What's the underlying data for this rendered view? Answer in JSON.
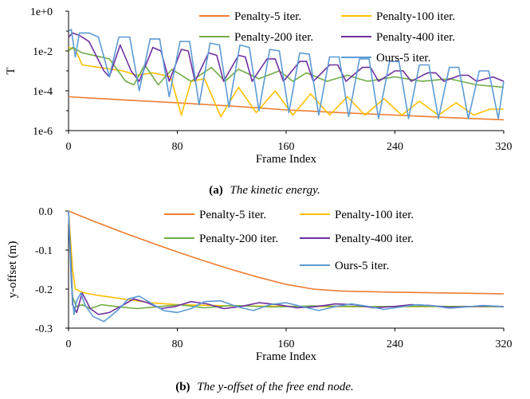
{
  "captions": {
    "a": {
      "label": "(a)",
      "text": "The kinetic energy."
    },
    "b": {
      "label": "(b)",
      "text": "The y-offset of the free end node."
    }
  },
  "colors": {
    "penalty5": "#ED7D31",
    "penalty100": "#FFC000",
    "penalty200": "#70AD47",
    "penalty400": "#7030A0",
    "ours5": "#5B9BD5"
  },
  "chart_data": [
    {
      "type": "line",
      "id": "a",
      "xlabel": "Frame Index",
      "ylabel": "T",
      "yscale": "log",
      "xlim": [
        0,
        320
      ],
      "ylim": [
        1e-06,
        1
      ],
      "xticks": [
        0,
        80,
        160,
        240,
        320
      ],
      "yticks": [
        1,
        0.01,
        0.0001,
        1e-06
      ],
      "ytick_labels": [
        "1e+0",
        "1e-2",
        "1e-4",
        "1e-6"
      ],
      "legend": "top, 2 columns",
      "series": [
        {
          "name": "Penalty-5 iter.",
          "color_key": "penalty5",
          "x": [
            0,
            40,
            80,
            120,
            160,
            200,
            240,
            280,
            320
          ],
          "y": [
            5e-05,
            3.5e-05,
            2.5e-05,
            1.7e-05,
            1.1e-05,
            8e-06,
            6e-06,
            4.5e-06,
            3.5e-06
          ]
        },
        {
          "name": "Penalty-100 iter.",
          "color_key": "penalty100",
          "x": [
            0,
            5,
            10,
            40,
            50,
            62,
            75,
            83,
            90,
            100,
            112,
            125,
            138,
            152,
            165,
            178,
            192,
            205,
            218,
            232,
            245,
            258,
            272,
            285,
            298,
            310,
            320
          ],
          "y": [
            0.015,
            0.012,
            0.002,
            0.001,
            0.0006,
            0.0008,
            0.0005,
            6e-06,
            0.0003,
            0.0004,
            5e-06,
            0.00015,
            8e-06,
            0.0001,
            6e-06,
            7e-05,
            6e-06,
            5e-05,
            6e-06,
            4e-05,
            6e-06,
            3e-05,
            6e-06,
            2.5e-05,
            6e-06,
            1.2e-05,
            1.2e-05
          ]
        },
        {
          "name": "Penalty-200 iter.",
          "color_key": "penalty200",
          "x": [
            0,
            3,
            10,
            30,
            42,
            48,
            56,
            66,
            76,
            90,
            105,
            115,
            125,
            140,
            155,
            165,
            175,
            190,
            205,
            220,
            240,
            260,
            280,
            300,
            320
          ],
          "y": [
            0.01,
            0.015,
            0.008,
            0.004,
            0.0003,
            0.0002,
            0.002,
            0.0002,
            0.0012,
            0.0003,
            0.0015,
            0.0003,
            0.0012,
            0.0004,
            0.001,
            0.0003,
            0.0008,
            0.0003,
            0.0006,
            0.0003,
            0.0005,
            0.0003,
            0.0004,
            0.0002,
            0.00015
          ]
        },
        {
          "name": "Penalty-400 iter.",
          "color_key": "penalty400",
          "x": [
            0,
            3,
            8,
            15,
            26,
            30,
            38,
            46,
            52,
            62,
            68,
            74,
            83,
            88,
            93,
            103,
            109,
            114,
            125,
            130,
            135,
            146,
            152,
            158,
            170,
            175,
            180,
            192,
            198,
            204,
            216,
            222,
            228,
            240,
            246,
            252,
            264,
            270,
            276,
            288,
            294,
            300,
            312,
            320
          ],
          "y": [
            0.05,
            0.08,
            0.06,
            0.03,
            0.001,
            0.0005,
            0.02,
            0.001,
            0.0003,
            0.015,
            0.01,
            0.0003,
            0.012,
            0.01,
            0.0003,
            0.008,
            0.006,
            0.0003,
            0.006,
            0.005,
            0.0003,
            0.004,
            0.004,
            0.0003,
            0.003,
            0.003,
            0.0003,
            0.002,
            0.002,
            0.0003,
            0.0015,
            0.0015,
            0.0003,
            0.001,
            0.001,
            0.0003,
            0.0008,
            0.0008,
            0.0003,
            0.0006,
            0.0006,
            0.0003,
            0.0005,
            0.0003
          ]
        },
        {
          "name": "Ours-5 iter.",
          "color_key": "ours5",
          "x": [
            0,
            2,
            5,
            8,
            15,
            22,
            30,
            37,
            45,
            52,
            60,
            67,
            74,
            82,
            89,
            96,
            104,
            111,
            118,
            126,
            133,
            140,
            148,
            155,
            162,
            170,
            177,
            184,
            192,
            199,
            206,
            214,
            221,
            228,
            236,
            243,
            250,
            258,
            265,
            272,
            280,
            287,
            294,
            302,
            309,
            316,
            320
          ],
          "y": [
            0.1,
            0.12,
            0.005,
            0.08,
            0.08,
            0.05,
            0.0005,
            0.05,
            0.05,
            0.0001,
            0.04,
            0.04,
            5e-05,
            0.03,
            0.03,
            2e-05,
            0.025,
            0.02,
            1.5e-05,
            0.02,
            0.015,
            1e-05,
            0.012,
            0.01,
            8e-06,
            0.008,
            0.007,
            6e-06,
            0.005,
            0.005,
            5e-06,
            0.004,
            0.004,
            4e-06,
            0.003,
            0.003,
            4e-06,
            0.002,
            0.002,
            4e-06,
            0.0015,
            0.0015,
            4e-06,
            0.001,
            0.001,
            4e-06,
            0.0003
          ]
        }
      ]
    },
    {
      "type": "line",
      "id": "b",
      "xlabel": "Frame Index",
      "ylabel": "y-offset (m)",
      "xlim": [
        0,
        320
      ],
      "ylim": [
        -0.3,
        0.0
      ],
      "xticks": [
        0,
        80,
        160,
        240,
        320
      ],
      "yticks": [
        0.0,
        -0.1,
        -0.2,
        -0.3
      ],
      "ytick_labels": [
        "0.0",
        "-0.1",
        "-0.2",
        "-0.3"
      ],
      "legend": "top, 2 columns",
      "series": [
        {
          "name": "Penalty-5 iter.",
          "color_key": "penalty5",
          "x": [
            0,
            20,
            40,
            60,
            80,
            100,
            120,
            140,
            160,
            180,
            200,
            240,
            280,
            320
          ],
          "y": [
            0.0,
            -0.028,
            -0.055,
            -0.08,
            -0.105,
            -0.128,
            -0.15,
            -0.17,
            -0.188,
            -0.2,
            -0.205,
            -0.208,
            -0.21,
            -0.212
          ]
        },
        {
          "name": "Penalty-100 iter.",
          "color_key": "penalty100",
          "x": [
            0,
            3,
            5,
            8,
            12,
            20,
            40,
            60,
            80,
            120,
            160,
            200,
            240,
            280,
            320
          ],
          "y": [
            0.0,
            -0.15,
            -0.2,
            -0.205,
            -0.21,
            -0.215,
            -0.225,
            -0.235,
            -0.24,
            -0.243,
            -0.244,
            -0.245,
            -0.245,
            -0.245,
            -0.245
          ]
        },
        {
          "name": "Penalty-200 iter.",
          "color_key": "penalty200",
          "x": [
            0,
            3,
            6,
            10,
            16,
            24,
            36,
            50,
            66,
            82,
            100,
            120,
            150,
            180,
            220,
            260,
            320
          ],
          "y": [
            0.0,
            -0.22,
            -0.245,
            -0.24,
            -0.25,
            -0.24,
            -0.245,
            -0.25,
            -0.245,
            -0.24,
            -0.248,
            -0.242,
            -0.246,
            -0.243,
            -0.245,
            -0.244,
            -0.245
          ]
        },
        {
          "name": "Penalty-400 iter.",
          "color_key": "penalty400",
          "x": [
            0,
            3,
            6,
            10,
            16,
            22,
            30,
            38,
            48,
            58,
            68,
            78,
            90,
            102,
            114,
            126,
            140,
            154,
            168,
            182,
            196,
            210,
            224,
            238,
            252,
            266,
            280,
            294,
            308,
            320
          ],
          "y": [
            0.0,
            -0.24,
            -0.26,
            -0.21,
            -0.25,
            -0.265,
            -0.26,
            -0.245,
            -0.225,
            -0.235,
            -0.25,
            -0.245,
            -0.232,
            -0.238,
            -0.25,
            -0.245,
            -0.235,
            -0.24,
            -0.248,
            -0.245,
            -0.238,
            -0.24,
            -0.248,
            -0.245,
            -0.24,
            -0.242,
            -0.247,
            -0.245,
            -0.243,
            -0.245
          ]
        },
        {
          "name": "Ours-5 iter.",
          "color_key": "ours5",
          "x": [
            0,
            2,
            4,
            6,
            9,
            12,
            18,
            26,
            36,
            44,
            52,
            60,
            70,
            80,
            90,
            100,
            112,
            124,
            136,
            148,
            160,
            172,
            184,
            196,
            208,
            220,
            232,
            244,
            256,
            268,
            280,
            292,
            304,
            316,
            320
          ],
          "y": [
            0.0,
            -0.18,
            -0.265,
            -0.23,
            -0.21,
            -0.24,
            -0.27,
            -0.283,
            -0.255,
            -0.225,
            -0.218,
            -0.235,
            -0.255,
            -0.26,
            -0.25,
            -0.232,
            -0.23,
            -0.245,
            -0.255,
            -0.24,
            -0.235,
            -0.245,
            -0.255,
            -0.245,
            -0.238,
            -0.244,
            -0.252,
            -0.246,
            -0.24,
            -0.243,
            -0.249,
            -0.246,
            -0.242,
            -0.244,
            -0.246
          ]
        }
      ]
    }
  ]
}
